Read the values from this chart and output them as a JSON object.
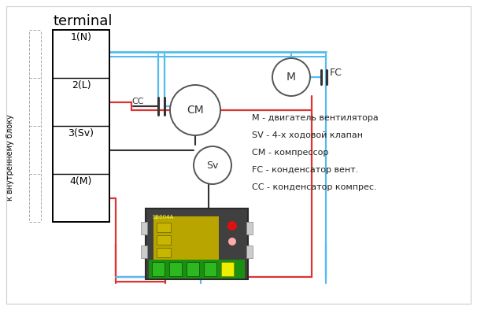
{
  "bg_color": "#ffffff",
  "blue": "#55bbee",
  "red": "#dd3333",
  "dark": "#333333",
  "title": "terminal",
  "sidebar": "к внутреннему блоку",
  "terminal_labels": [
    "1(N)",
    "2(L)",
    "3(Sv)",
    "4(M)"
  ],
  "legend": [
    "М - двигатель вентилятора",
    "SV - 4-х ходовой клапан",
    "СМ - компрессор",
    "FC - конденсатор вент.",
    "СС - конденсатор компрес."
  ]
}
